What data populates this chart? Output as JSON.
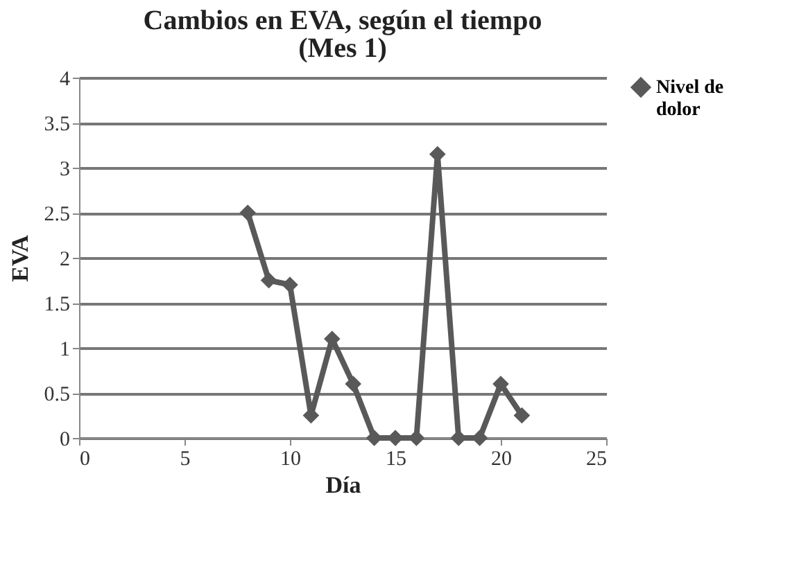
{
  "chart_data": {
    "type": "line",
    "title": "Cambios en EVA, según el tiempo",
    "subtitle": "(Mes 1)",
    "xlabel": "Día",
    "ylabel": "EVA",
    "x": [
      8,
      9,
      10,
      11,
      12,
      13,
      14,
      15,
      16,
      17,
      18,
      19,
      20,
      21
    ],
    "series": [
      {
        "name": "Nivel de dolor",
        "color": "#595959",
        "values": [
          2.5,
          1.75,
          1.7,
          0.25,
          1.1,
          0.6,
          0,
          0,
          0,
          3.15,
          0,
          0,
          0.6,
          0.25
        ]
      }
    ],
    "xlim": [
      0,
      25
    ],
    "xticks": [
      0,
      5,
      10,
      15,
      20,
      25
    ],
    "ylim": [
      0,
      4
    ],
    "yticks": [
      0,
      0.5,
      1,
      1.5,
      2,
      2.5,
      3,
      3.5,
      4
    ],
    "grid": "y",
    "legend": "right",
    "marker": "diamond",
    "line_style": "solid"
  }
}
